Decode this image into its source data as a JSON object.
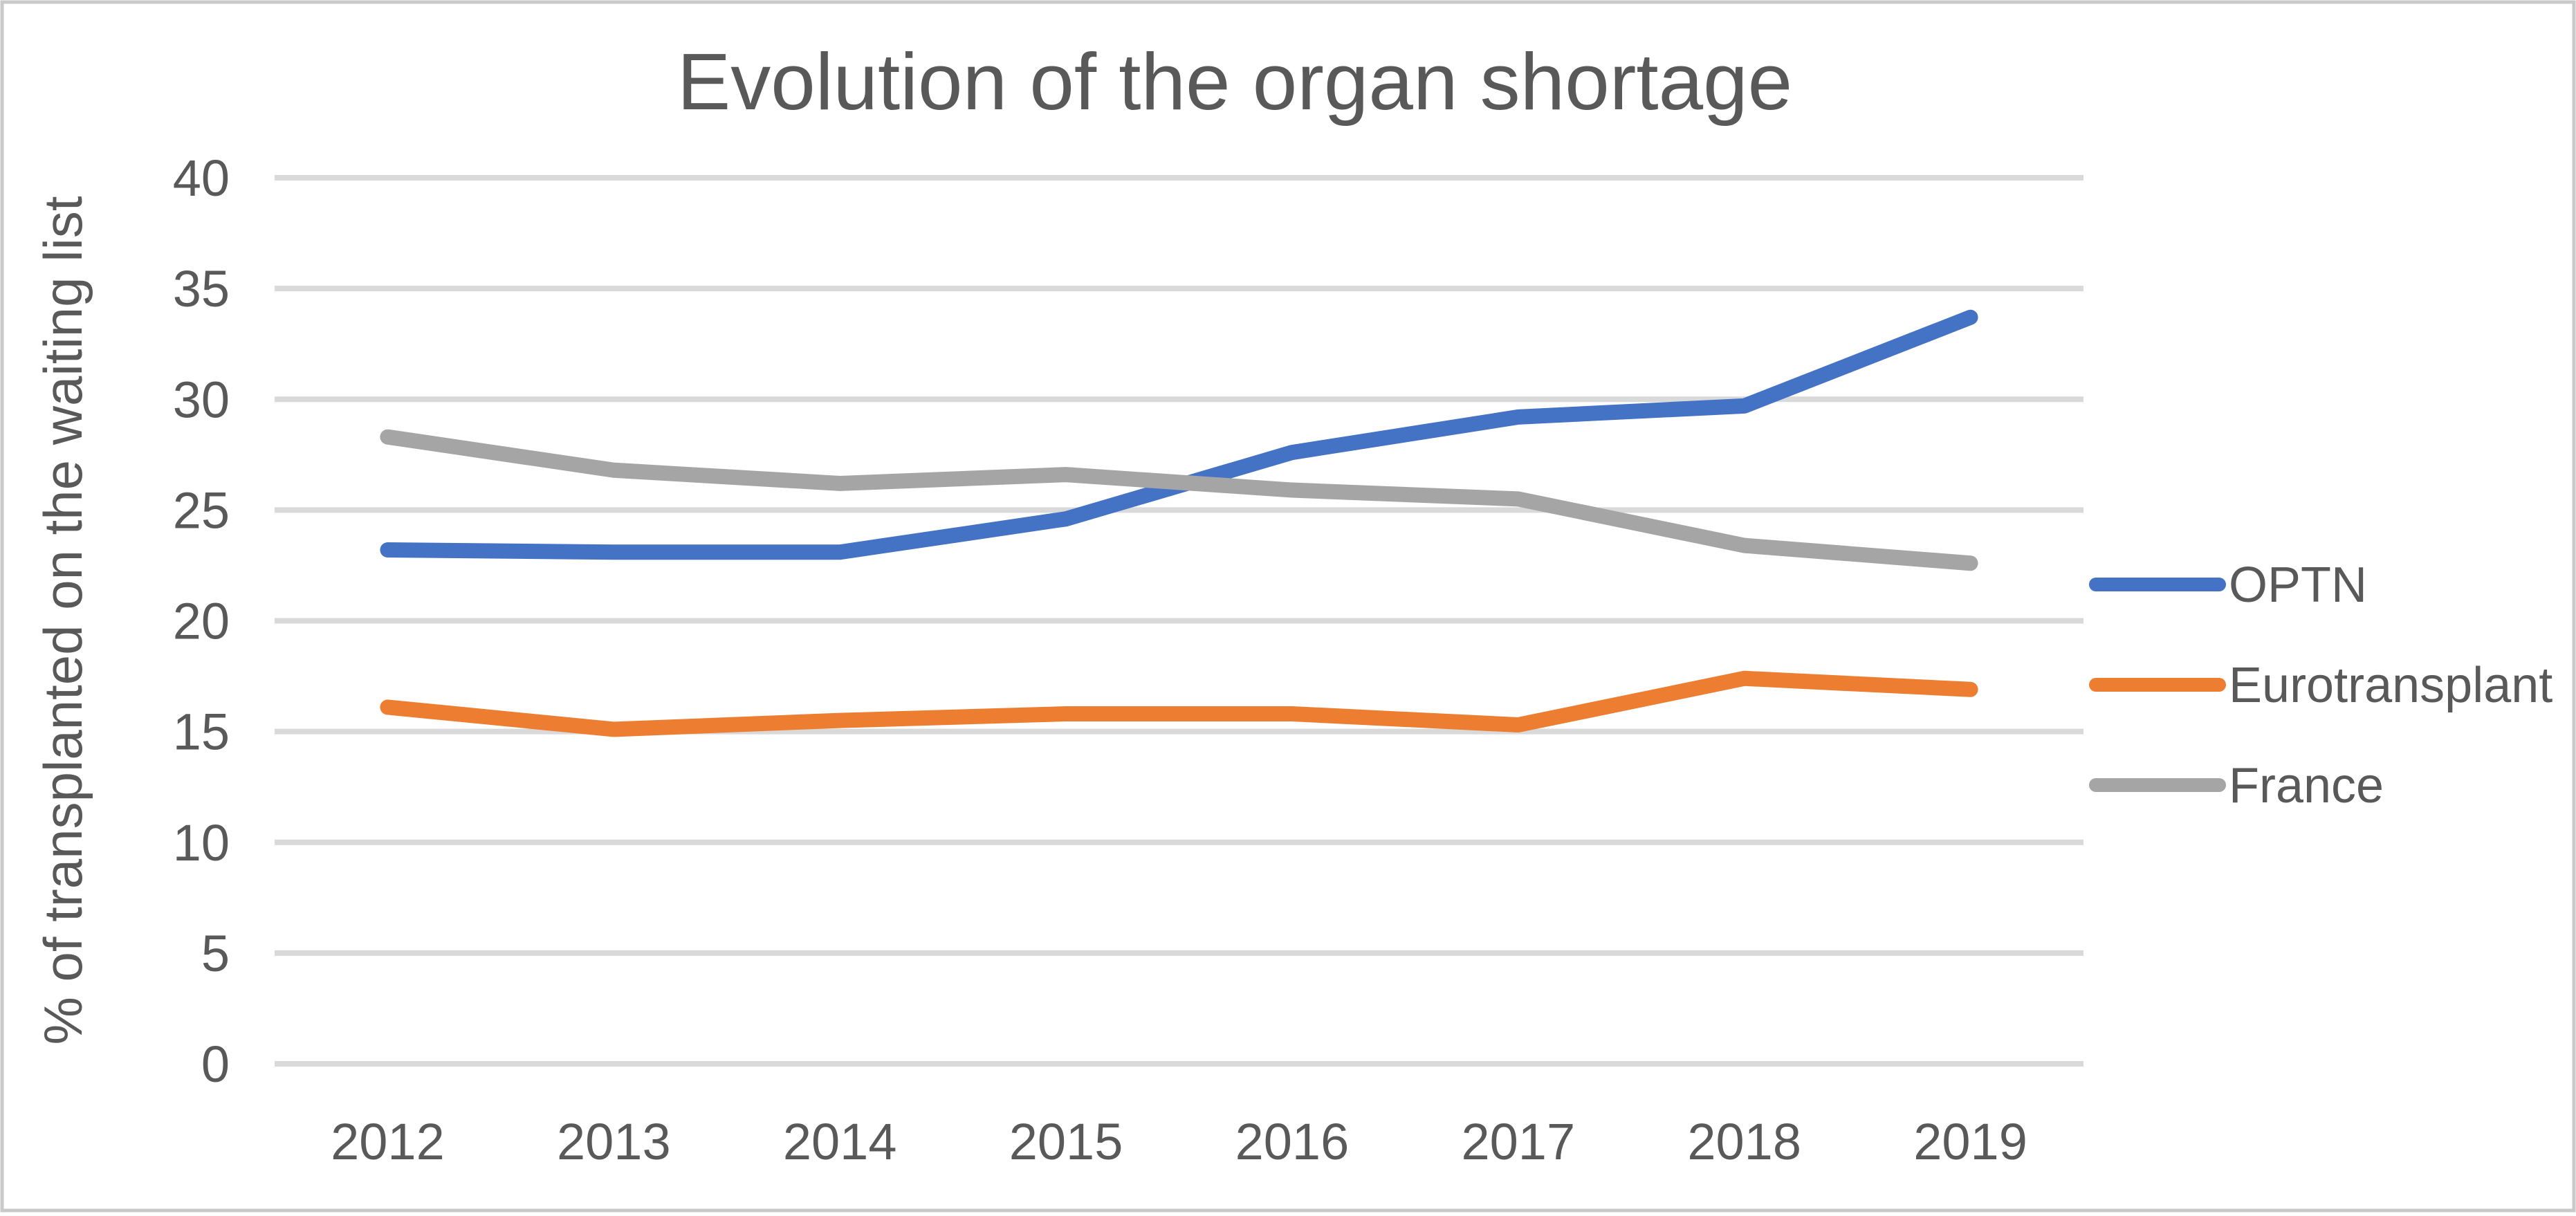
{
  "chart_data": {
    "type": "line",
    "title": "Evolution of the organ shortage",
    "ylabel": "% of transplanted on the waiting list",
    "xlabel": "",
    "categories": [
      "2012",
      "2013",
      "2014",
      "2015",
      "2016",
      "2017",
      "2018",
      "2019"
    ],
    "ylim": [
      0,
      40
    ],
    "ytick_step": 5,
    "yticks": [
      "0",
      "5",
      "10",
      "15",
      "20",
      "25",
      "30",
      "35",
      "40"
    ],
    "grid": "horizontal-only",
    "legend_position": "right",
    "series": [
      {
        "name": "OPTN",
        "color": "#4472C4",
        "values": [
          23.2,
          23.1,
          23.1,
          24.6,
          27.6,
          29.2,
          29.7,
          33.7
        ]
      },
      {
        "name": "Eurotransplant",
        "color": "#ED7D31",
        "values": [
          16.1,
          15.1,
          15.5,
          15.8,
          15.8,
          15.3,
          17.4,
          16.9
        ]
      },
      {
        "name": "France",
        "color": "#A5A5A5",
        "values": [
          28.3,
          26.8,
          26.2,
          26.6,
          25.9,
          25.5,
          23.4,
          22.6
        ]
      }
    ],
    "colors": {
      "text": "#595959",
      "gridline": "#D9D9D9",
      "frame_border": "#C9C9C9",
      "background": "#FFFFFF"
    }
  }
}
